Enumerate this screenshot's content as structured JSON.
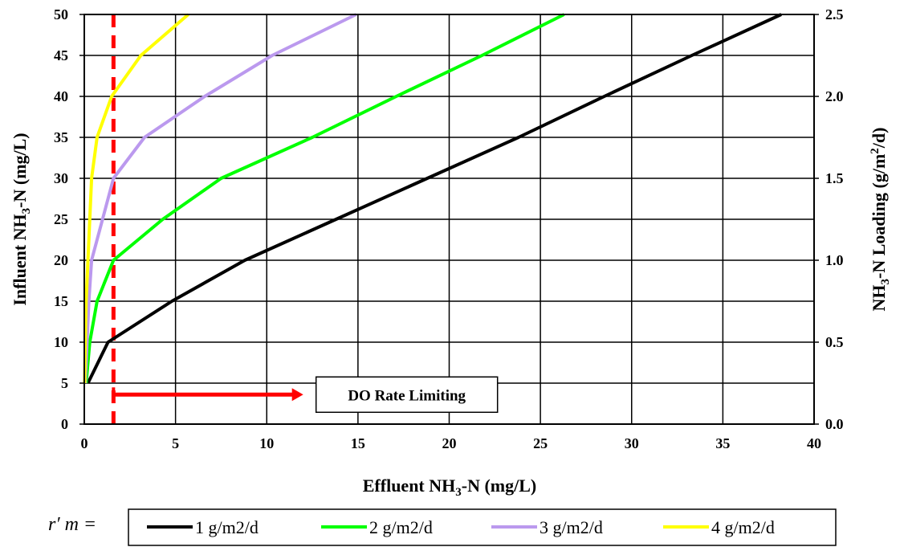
{
  "chart_data": {
    "type": "line",
    "xlabel_pre": "Effluent NH",
    "xlabel_sub": "3",
    "xlabel_post": "-N (mg/L)",
    "ylabel_pre": "Influent NH",
    "ylabel_sub": "3",
    "ylabel_post": "-N (mg/L)",
    "y2label_pre": "NH",
    "y2label_sub": "3",
    "y2label_mid": "-N Loading (g/m",
    "y2label_sup": "2",
    "y2label_post": "/d)",
    "xlim": [
      0,
      40
    ],
    "ylim": [
      0,
      50
    ],
    "y2lim": [
      0.0,
      2.5
    ],
    "x_ticks": [
      "0",
      "5",
      "10",
      "15",
      "20",
      "25",
      "30",
      "35",
      "40"
    ],
    "y_ticks": [
      "0",
      "5",
      "10",
      "15",
      "20",
      "25",
      "30",
      "35",
      "40",
      "45",
      "50"
    ],
    "y2_ticks": [
      "0.0",
      "0.5",
      "1.0",
      "1.5",
      "2.0",
      "2.5"
    ],
    "grid": true,
    "legend_position": "bottom",
    "legend_prefix": "r′ m =",
    "series": [
      {
        "name": "1 g/m2/d",
        "color": "#000000",
        "x": [
          0.2,
          1.3,
          4.8,
          8.8,
          13.8,
          18.8,
          23.8,
          28.5,
          33.3,
          38.2
        ],
        "y": [
          5,
          10,
          15,
          20,
          25,
          30,
          35,
          40,
          45,
          50
        ]
      },
      {
        "name": "2 g/m2/d",
        "color": "#00ff00",
        "x": [
          0.1,
          0.3,
          0.7,
          1.6,
          4.3,
          7.5,
          12.5,
          17.1,
          21.8,
          26.3
        ],
        "y": [
          5,
          10,
          15,
          20,
          25,
          30,
          35,
          40,
          45,
          50
        ]
      },
      {
        "name": "3 g/m2/d",
        "color": "#bb99ee",
        "x": [
          0.05,
          0.15,
          0.25,
          0.4,
          1.0,
          1.6,
          3.3,
          6.6,
          10.3,
          14.9
        ],
        "y": [
          5,
          10,
          15,
          20,
          25,
          30,
          35,
          40,
          45,
          50
        ]
      },
      {
        "name": "4 g/m2/d",
        "color": "#ffff00",
        "x": [
          0.02,
          0.05,
          0.1,
          0.2,
          0.3,
          0.4,
          0.7,
          1.5,
          3.1,
          5.7
        ],
        "y": [
          5,
          10,
          15,
          20,
          25,
          30,
          35,
          40,
          45,
          50
        ]
      }
    ],
    "reference_line": {
      "x": 1.6,
      "color": "#ff0000",
      "style": "dashed"
    },
    "annotation": {
      "text": "DO Rate Limiting",
      "arrow_from_x": 1.6,
      "arrow_to_x": 12,
      "y": 3.6,
      "color": "#ff0000"
    }
  }
}
